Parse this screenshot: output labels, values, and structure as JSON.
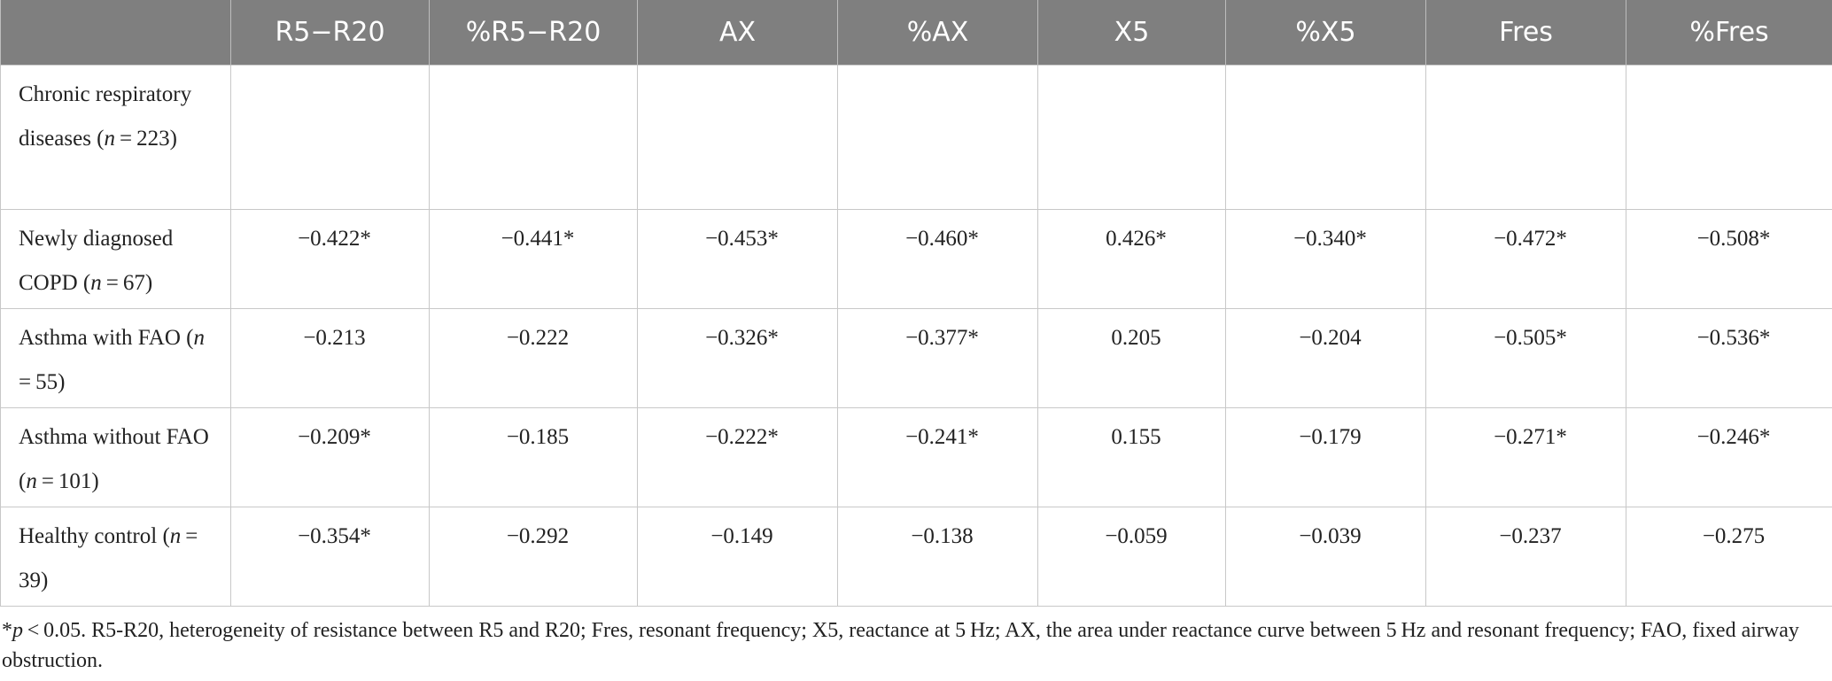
{
  "table": {
    "header": [
      "R5−R20",
      "%R5−R20",
      "AX",
      "%AX",
      "X5",
      "%X5",
      "Fres",
      "%Fres"
    ],
    "rows": [
      [
        "Chronic respiratory diseases (n = 223)",
        "",
        "",
        "",
        "",
        "",
        "",
        "",
        ""
      ],
      [
        "Newly diagnosed COPD (n = 67)",
        "−0.422*",
        "−0.441*",
        "−0.453*",
        "−0.460*",
        "0.426*",
        "−0.340*",
        "−0.472*",
        "−0.508*"
      ],
      [
        "Asthma with FAO (n = 55)",
        "−0.213",
        "−0.222",
        "−0.326*",
        "−0.377*",
        "0.205",
        "−0.204",
        "−0.505*",
        "−0.536*"
      ],
      [
        "Asthma without FAO (n = 101)",
        "−0.209*",
        "−0.185",
        "−0.222*",
        "−0.241*",
        "0.155",
        "−0.179",
        "−0.271*",
        "−0.246*"
      ],
      [
        "Healthy control (n = 39)",
        "−0.354*",
        "−0.292",
        "−0.149",
        "−0.138",
        "−0.059",
        "−0.039",
        "−0.237",
        "−0.275"
      ]
    ]
  },
  "footnote": "*p < 0.05. R5-R20, heterogeneity of resistance between R5 and R20; Fres, resonant frequency; X5, reactance at 5 Hz; AX, the area under reactance curve between 5 Hz and resonant frequency; FAO, fixed airway obstruction."
}
